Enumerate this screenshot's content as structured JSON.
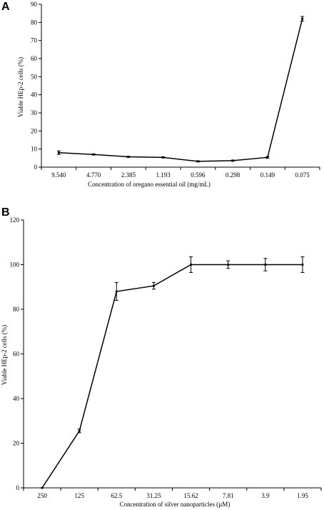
{
  "chart_data": [
    {
      "type": "line",
      "panel_label": "A",
      "title": "",
      "xlabel": "Concentration of oregano essential oil (mg/mL)",
      "ylabel": "Viable HEp-2 cells (%)",
      "categories": [
        "9.540",
        "4.770",
        "2.385",
        "1.193",
        "0.596",
        "0.298",
        "0.149",
        "0.075"
      ],
      "series": [
        {
          "values": [
            8,
            7,
            5.7,
            5.4,
            3.2,
            3.6,
            5.4,
            82
          ],
          "errors": [
            1.0,
            0.3,
            0.3,
            0.3,
            0.3,
            0.3,
            0.5,
            1.3
          ]
        }
      ],
      "ylim": [
        0,
        90
      ],
      "yticks": [
        0,
        10,
        20,
        30,
        40,
        50,
        60,
        70,
        80,
        90
      ],
      "grid": false,
      "legend": "none"
    },
    {
      "type": "line",
      "panel_label": "B",
      "title": "",
      "xlabel": "Concentration of silver nanoparticles (µM)",
      "ylabel": "Viable HEp-2 cells (%)",
      "categories": [
        "250",
        "125",
        "62.5",
        "31.25",
        "15.62",
        "7.81",
        "3.9",
        "1.95"
      ],
      "series": [
        {
          "values": [
            0,
            25.5,
            88,
            90.5,
            100,
            100,
            100,
            100
          ],
          "errors": [
            0,
            0.8,
            4,
            1.5,
            3.5,
            1.7,
            2.8,
            3.5
          ]
        }
      ],
      "ylim": [
        0,
        120
      ],
      "yticks": [
        0,
        20,
        40,
        60,
        80,
        100,
        120
      ],
      "grid": false,
      "legend": "none"
    }
  ]
}
